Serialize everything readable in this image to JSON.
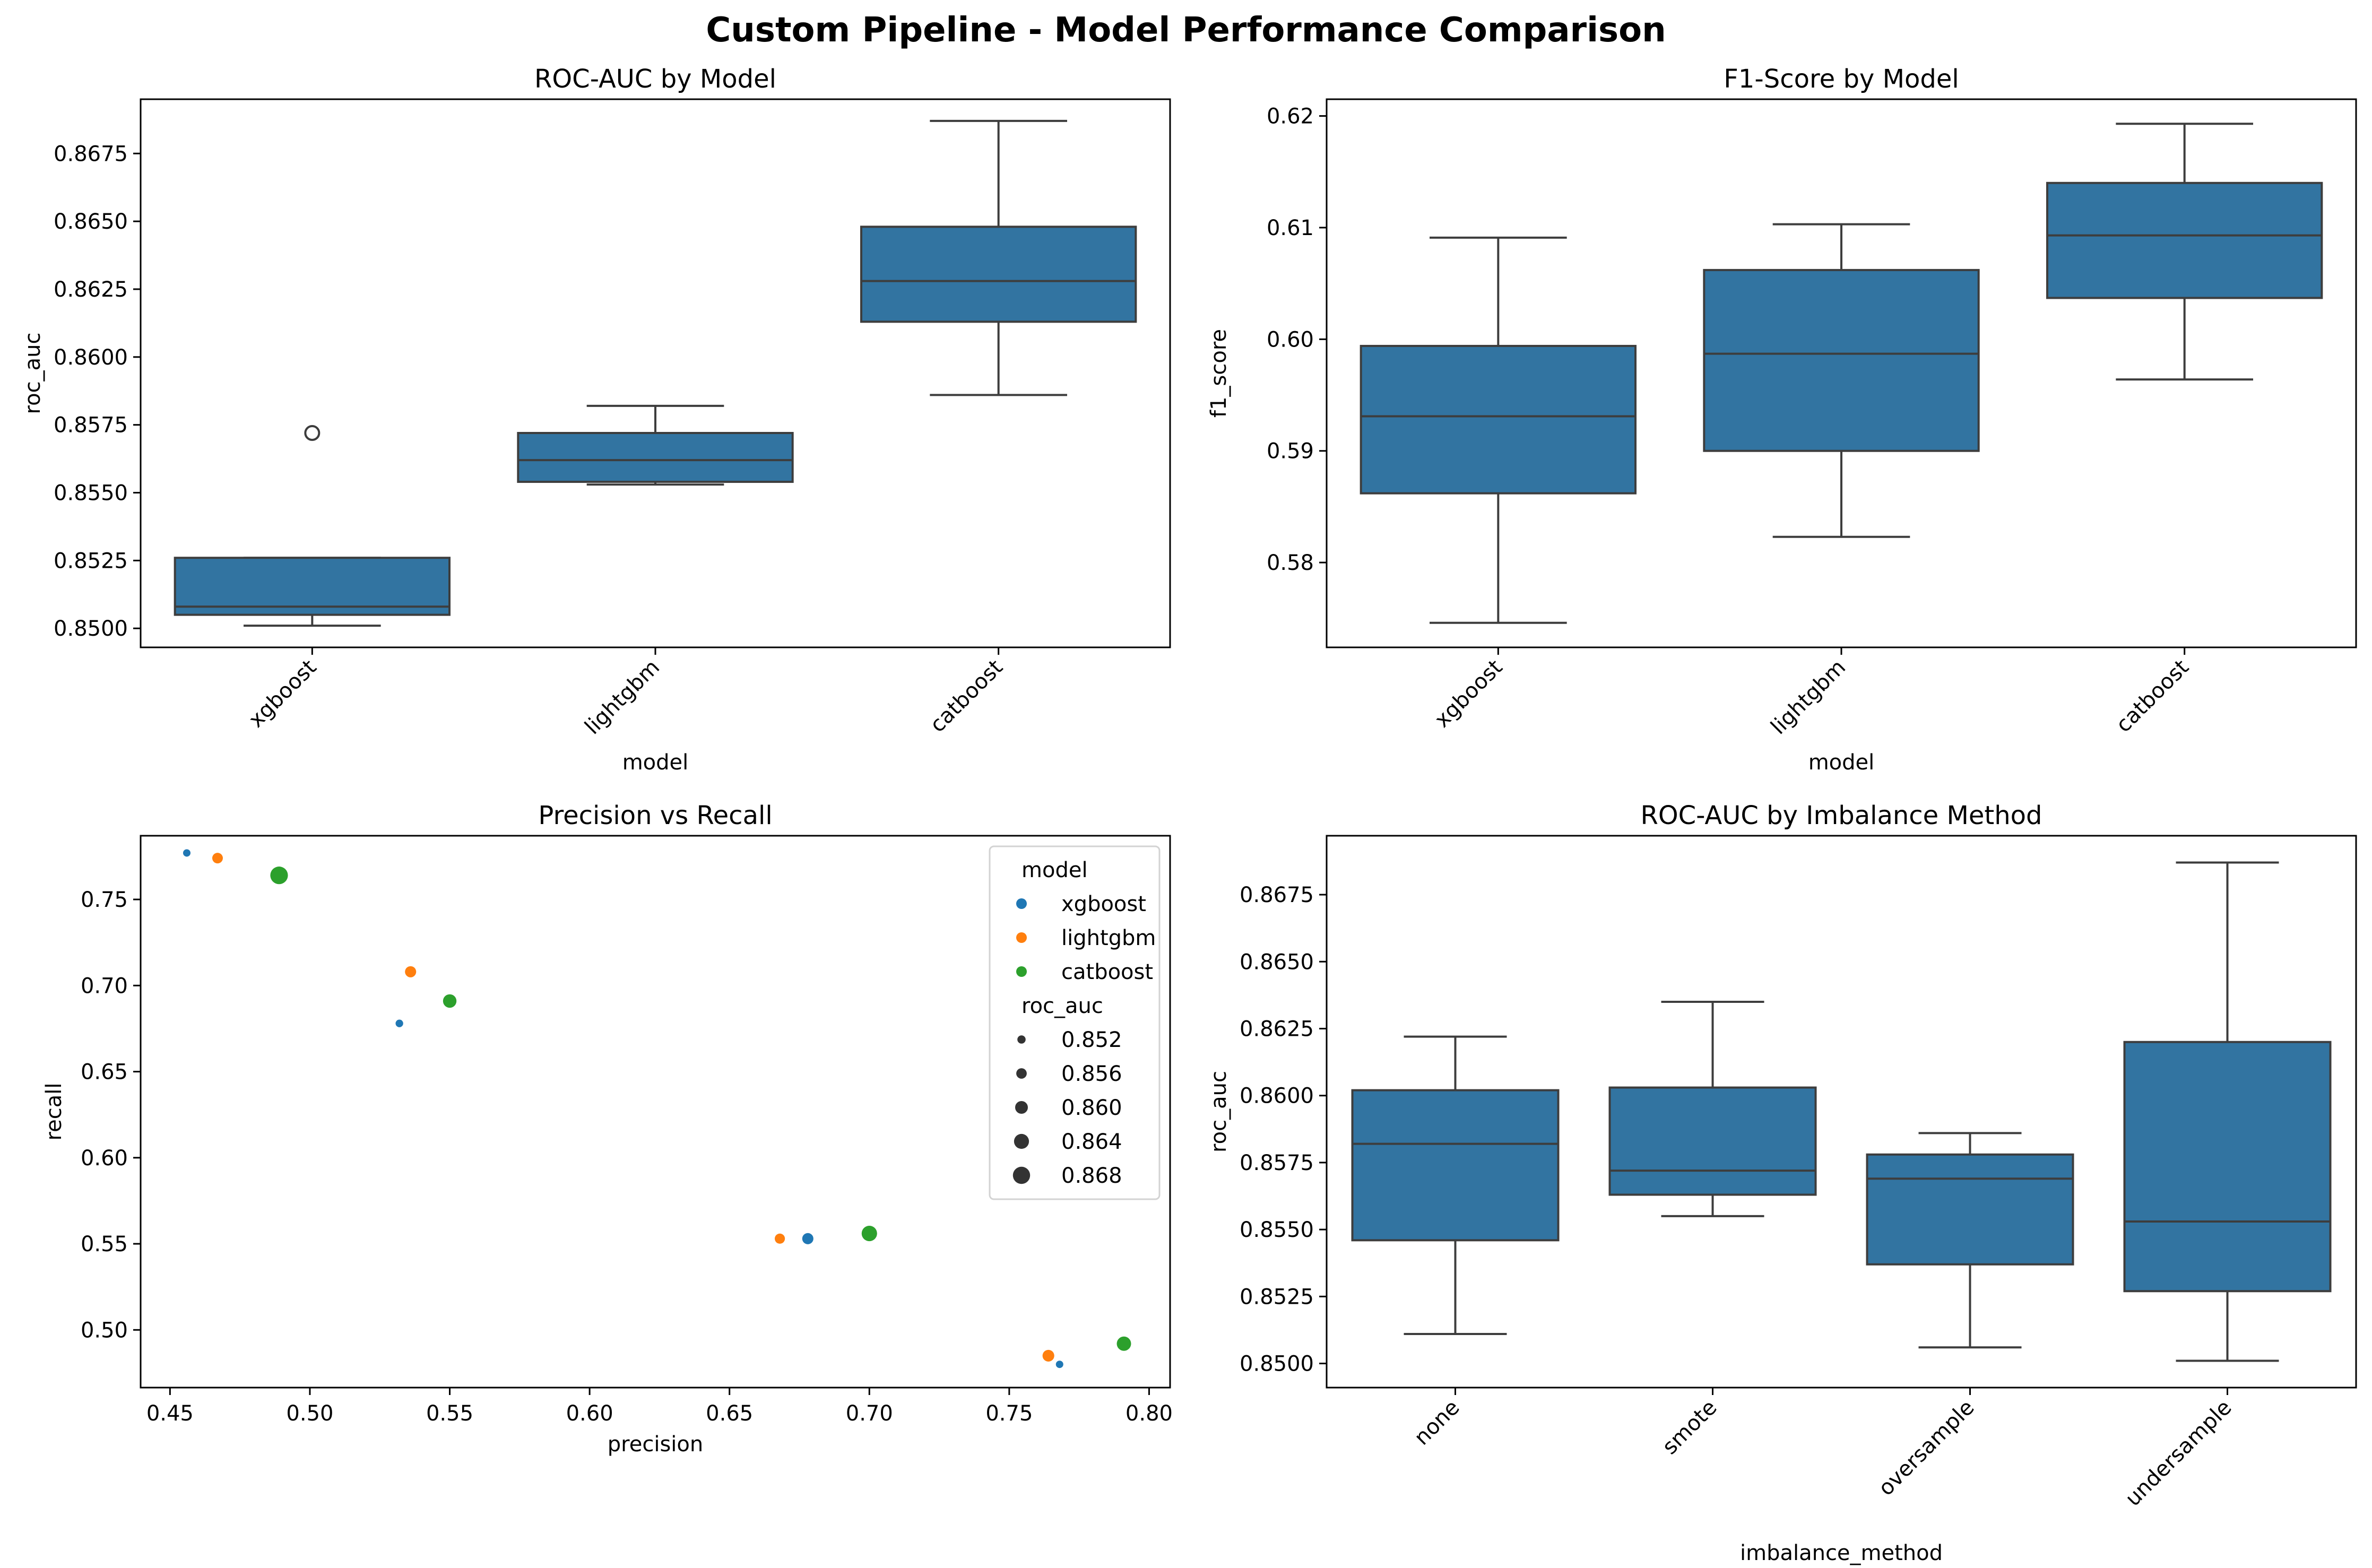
{
  "figure": {
    "title": "Custom Pipeline - Model Performance Comparison"
  },
  "colors": {
    "box": "#3274a1",
    "edge": "#3d3d3d",
    "xgboost": "#1f77b4",
    "lightgbm": "#ff7f0e",
    "catboost": "#2ca02c"
  },
  "chart_data": [
    {
      "id": "roc",
      "type": "box",
      "title": "ROC-AUC by Model",
      "xlabel": "model",
      "ylabel": "roc_auc",
      "categories": [
        "xgboost",
        "lightgbm",
        "catboost"
      ],
      "boxes": [
        {
          "whislo": 0.8501,
          "q1": 0.8505,
          "med": 0.8508,
          "q3": 0.8526,
          "whishi": 0.8526,
          "fliers": [
            0.8572
          ]
        },
        {
          "whislo": 0.8553,
          "q1": 0.8554,
          "med": 0.8562,
          "q3": 0.8572,
          "whishi": 0.8582,
          "fliers": []
        },
        {
          "whislo": 0.8586,
          "q1": 0.8613,
          "med": 0.8628,
          "q3": 0.8648,
          "whishi": 0.8687,
          "fliers": []
        }
      ],
      "ylim": [
        0.8493,
        0.8695
      ],
      "yticks": [
        0.85,
        0.8525,
        0.855,
        0.8575,
        0.86,
        0.8625,
        0.865,
        0.8675
      ],
      "ytick_labels": [
        "0.8500",
        "0.8525",
        "0.8550",
        "0.8575",
        "0.8600",
        "0.8625",
        "0.8650",
        "0.8675"
      ],
      "rotate_xticks": true
    },
    {
      "id": "f1",
      "type": "box",
      "title": "F1-Score by Model",
      "xlabel": "model",
      "ylabel": "f1_score",
      "categories": [
        "xgboost",
        "lightgbm",
        "catboost"
      ],
      "boxes": [
        {
          "whislo": 0.5746,
          "q1": 0.5862,
          "med": 0.5931,
          "q3": 0.5994,
          "whishi": 0.6091,
          "fliers": []
        },
        {
          "whislo": 0.5823,
          "q1": 0.59,
          "med": 0.5987,
          "q3": 0.6062,
          "whishi": 0.6103,
          "fliers": []
        },
        {
          "whislo": 0.5964,
          "q1": 0.6037,
          "med": 0.6093,
          "q3": 0.614,
          "whishi": 0.6193,
          "fliers": []
        }
      ],
      "ylim": [
        0.5724,
        0.6215
      ],
      "yticks": [
        0.58,
        0.59,
        0.6,
        0.61,
        0.62
      ],
      "ytick_labels": [
        "0.58",
        "0.59",
        "0.60",
        "0.61",
        "0.62"
      ],
      "rotate_xticks": true
    },
    {
      "id": "pr",
      "type": "scatter",
      "title": "Precision vs Recall",
      "xlabel": "precision",
      "ylabel": "recall",
      "xlim": [
        0.4395,
        0.8075
      ],
      "ylim": [
        0.4665,
        0.787
      ],
      "xticks": [
        0.45,
        0.5,
        0.55,
        0.6,
        0.65,
        0.7,
        0.75,
        0.8
      ],
      "xtick_labels": [
        "0.45",
        "0.50",
        "0.55",
        "0.60",
        "0.65",
        "0.70",
        "0.75",
        "0.80"
      ],
      "yticks": [
        0.5,
        0.55,
        0.6,
        0.65,
        0.7,
        0.75
      ],
      "ytick_labels": [
        "0.50",
        "0.55",
        "0.60",
        "0.65",
        "0.70",
        "0.75"
      ],
      "series": [
        {
          "name": "xgboost",
          "points": [
            {
              "x": 0.456,
              "y": 0.777,
              "size": 0.8505
            },
            {
              "x": 0.532,
              "y": 0.678,
              "size": 0.8508
            },
            {
              "x": 0.678,
              "y": 0.553,
              "size": 0.8572
            },
            {
              "x": 0.768,
              "y": 0.48,
              "size": 0.8501
            }
          ]
        },
        {
          "name": "lightgbm",
          "points": [
            {
              "x": 0.467,
              "y": 0.774,
              "size": 0.8562
            },
            {
              "x": 0.536,
              "y": 0.708,
              "size": 0.8572
            },
            {
              "x": 0.668,
              "y": 0.553,
              "size": 0.8554
            },
            {
              "x": 0.764,
              "y": 0.485,
              "size": 0.8582
            }
          ]
        },
        {
          "name": "catboost",
          "points": [
            {
              "x": 0.489,
              "y": 0.764,
              "size": 0.8687
            },
            {
              "x": 0.55,
              "y": 0.691,
              "size": 0.8613
            },
            {
              "x": 0.7,
              "y": 0.556,
              "size": 0.8648
            },
            {
              "x": 0.791,
              "y": 0.492,
              "size": 0.8628
            }
          ]
        }
      ],
      "legend": {
        "position": "top-right",
        "hue_title": "model",
        "hue_entries": [
          "xgboost",
          "lightgbm",
          "catboost"
        ],
        "size_title": "roc_auc",
        "size_values": [
          0.852,
          0.856,
          0.86,
          0.864,
          0.868
        ],
        "size_labels": [
          "0.852",
          "0.856",
          "0.860",
          "0.864",
          "0.868"
        ]
      }
    },
    {
      "id": "imb",
      "type": "box",
      "title": "ROC-AUC by Imbalance Method",
      "xlabel": "imbalance_method",
      "ylabel": "roc_auc",
      "categories": [
        "none",
        "smote",
        "oversample",
        "undersample"
      ],
      "boxes": [
        {
          "whislo": 0.8511,
          "q1": 0.8546,
          "med": 0.8582,
          "q3": 0.8602,
          "whishi": 0.8622,
          "fliers": []
        },
        {
          "whislo": 0.8555,
          "q1": 0.8563,
          "med": 0.8572,
          "q3": 0.8603,
          "whishi": 0.8635,
          "fliers": []
        },
        {
          "whislo": 0.8506,
          "q1": 0.8537,
          "med": 0.8569,
          "q3": 0.8578,
          "whishi": 0.8586,
          "fliers": []
        },
        {
          "whislo": 0.8501,
          "q1": 0.8527,
          "med": 0.8553,
          "q3": 0.862,
          "whishi": 0.8687,
          "fliers": []
        }
      ],
      "ylim": [
        0.8491,
        0.8697
      ],
      "yticks": [
        0.85,
        0.8525,
        0.855,
        0.8575,
        0.86,
        0.8625,
        0.865,
        0.8675
      ],
      "ytick_labels": [
        "0.8500",
        "0.8525",
        "0.8550",
        "0.8575",
        "0.8600",
        "0.8625",
        "0.8650",
        "0.8675"
      ],
      "rotate_xticks": true
    }
  ]
}
